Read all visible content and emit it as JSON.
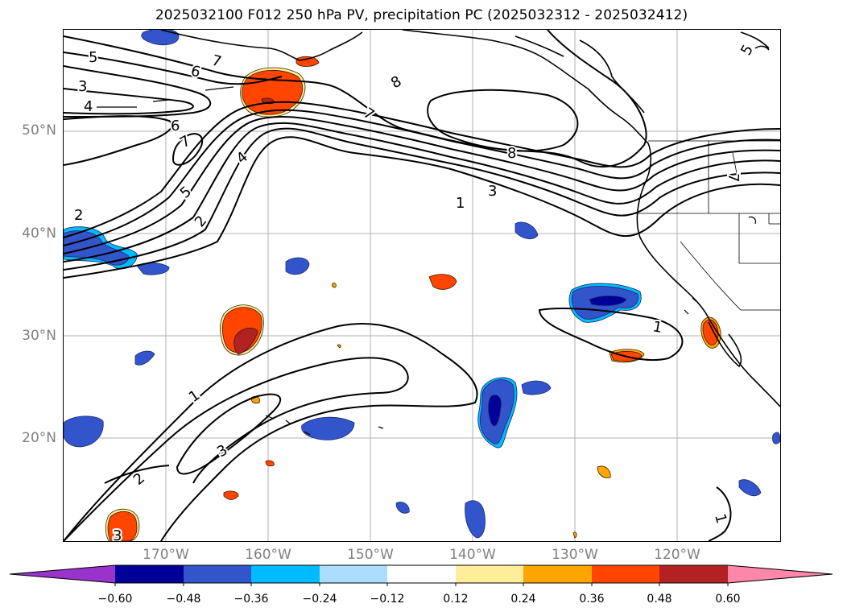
{
  "title": "2025032100 F012 250 hPa PV, precipitation PC (2025032312 - 2025032412)",
  "lat_labels": [
    "50°N",
    "40°N",
    "30°N",
    "20°N"
  ],
  "lon_labels": [
    "170°W",
    "160°W",
    "150°W",
    "140°W",
    "130°W",
    "120°W"
  ],
  "contour_labels": [
    "5",
    "7",
    "6",
    "3",
    "4",
    "6",
    "7",
    "8",
    "7",
    "4",
    "5",
    "2",
    "8",
    "3",
    "1",
    "7",
    "1",
    "2",
    "1",
    "3",
    "2",
    "3",
    "1",
    "5"
  ],
  "colorbar": {
    "ticks": [
      "−0.60",
      "−0.48",
      "−0.36",
      "−0.24",
      "−0.12",
      "0.12",
      "0.24",
      "0.36",
      "0.48",
      "0.60"
    ],
    "colors": [
      "#9933cc",
      "#000099",
      "#3355cc",
      "#00bbff",
      "#aaddff",
      "#ffffff",
      "#ffee99",
      "#ffa500",
      "#ff4500",
      "#b22222",
      "#ff88aa"
    ]
  },
  "colors": {
    "grid": "#b0b0b0",
    "contour": "#000000",
    "coast": "#000000",
    "tick_label": "#808080"
  }
}
